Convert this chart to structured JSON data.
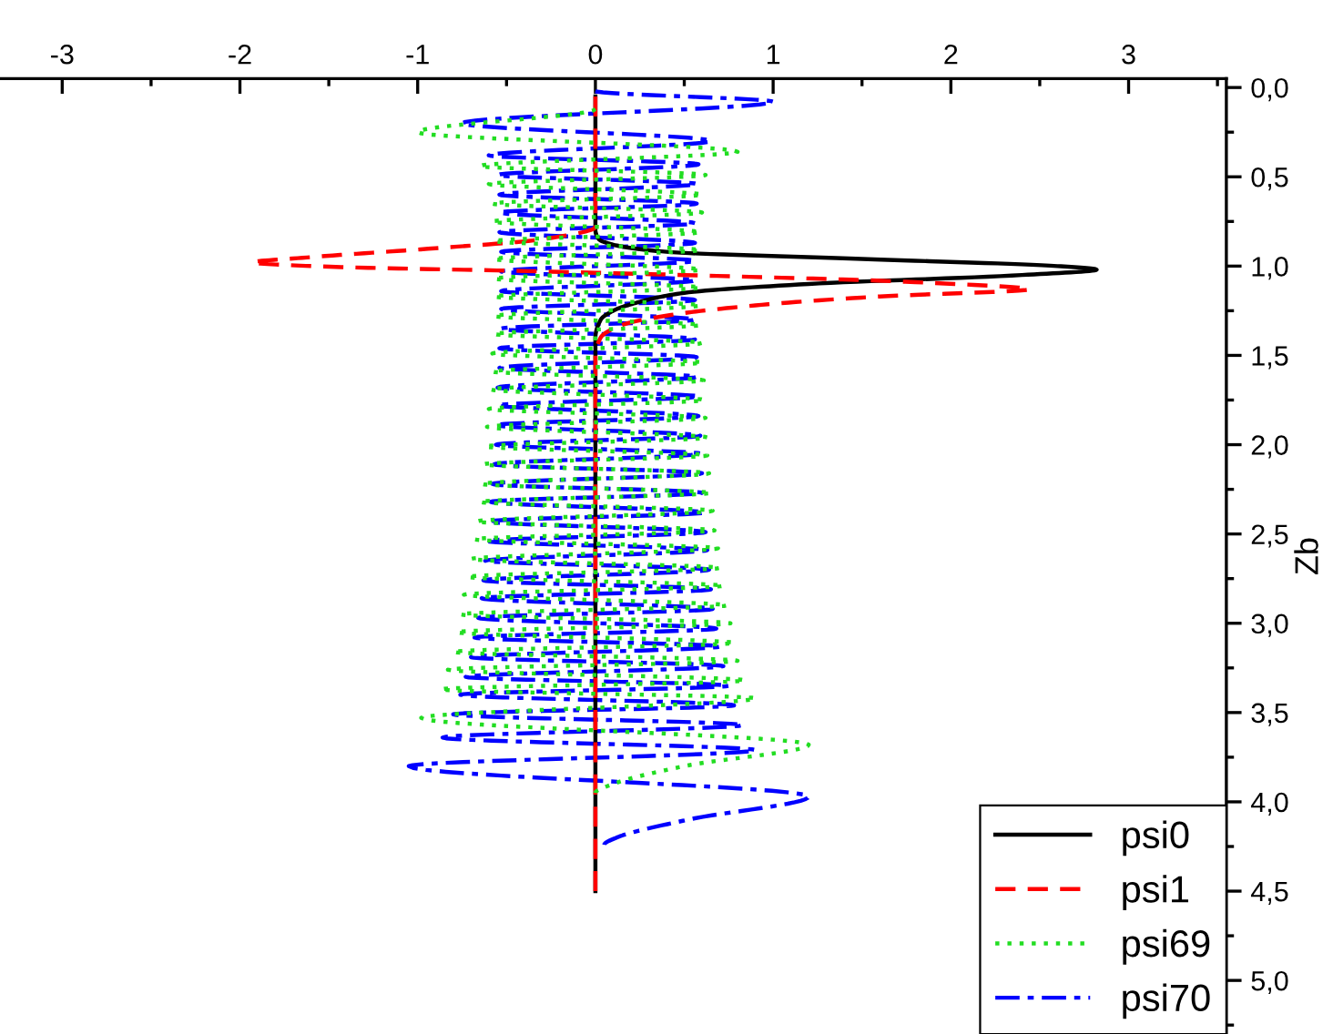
{
  "chart_data": {
    "type": "line",
    "ylabel": "Zb",
    "xlim": [
      -3.35,
      3.55
    ],
    "xticks": [
      -3,
      -2,
      -1,
      0,
      1,
      2,
      3
    ],
    "ylim": [
      5.3,
      -0.05
    ],
    "yticks": [
      {
        "value": 0,
        "label": "0,0"
      },
      {
        "value": 0.5,
        "label": "0,5"
      },
      {
        "value": 1,
        "label": "1,0"
      },
      {
        "value": 1.5,
        "label": "1,5"
      },
      {
        "value": 2,
        "label": "2,0"
      },
      {
        "value": 2.5,
        "label": "2,5"
      },
      {
        "value": 3,
        "label": "3,0"
      },
      {
        "value": 3.5,
        "label": "3,5"
      },
      {
        "value": 4,
        "label": "4,0"
      },
      {
        "value": 4.5,
        "label": "4,5"
      },
      {
        "value": 5,
        "label": "5,0"
      }
    ],
    "grid": false,
    "legend": "bottom right",
    "marker": "none",
    "series": [
      {
        "name": "psi0",
        "color": "#000000",
        "line_style": "solid",
        "x": [
          0,
          0,
          0.02,
          0.1,
          0.4,
          1.5,
          2.6,
          2.82,
          2.4,
          1.2,
          0.5,
          0.25,
          0.1,
          0.03,
          0,
          0
        ],
        "values": [
          0.05,
          0.8,
          0.85,
          0.88,
          0.92,
          0.96,
          1.0,
          1.02,
          1.05,
          1.1,
          1.15,
          1.2,
          1.25,
          1.3,
          1.4,
          4.5
        ]
      },
      {
        "name": "psi1",
        "color": "#ff0000",
        "line_style": "dashed",
        "x": [
          0,
          0,
          -0.3,
          -0.9,
          -1.6,
          -1.93,
          -1.6,
          -0.3,
          0.5,
          1.8,
          2.44,
          1.6,
          0.9,
          0.45,
          0.15,
          0.03,
          0,
          0
        ],
        "values": [
          0.05,
          0.78,
          0.85,
          0.9,
          0.95,
          0.98,
          1.0,
          1.03,
          1.05,
          1.09,
          1.13,
          1.17,
          1.22,
          1.27,
          1.33,
          1.4,
          1.5,
          4.5
        ]
      },
      {
        "name": "psi69",
        "color": "#22dd22",
        "line_style": "dotted",
        "x": [
          0,
          -1.0,
          0.8,
          -0.65,
          0.62,
          -0.6,
          0.6,
          -0.58,
          0.6,
          -0.58,
          0.59,
          -0.57,
          0.59,
          -0.57,
          0.59,
          -0.57,
          0.59,
          -0.57,
          0.59,
          -0.57,
          0.59,
          -0.57,
          0.6,
          -0.58,
          0.6,
          -0.58,
          0.61,
          -0.59,
          0.61,
          -0.6,
          0.62,
          -0.61,
          0.63,
          -0.62,
          0.63,
          -0.63,
          0.64,
          -0.64,
          0.65,
          -0.65,
          0.66,
          -0.67,
          0.67,
          -0.68,
          0.69,
          -0.7,
          0.7,
          -0.72,
          0.72,
          -0.74,
          0.74,
          -0.76,
          0.76,
          -0.78,
          0.78,
          -0.8,
          0.8,
          -0.83,
          0.84,
          -0.87,
          0.9,
          -0.98,
          1.2,
          0.5,
          0.1,
          0
        ],
        "values": [
          0.12,
          0.25,
          0.36,
          0.44,
          0.49,
          0.54,
          0.6,
          0.65,
          0.7,
          0.75,
          0.81,
          0.86,
          0.91,
          0.96,
          1.02,
          1.07,
          1.12,
          1.17,
          1.22,
          1.28,
          1.33,
          1.38,
          1.43,
          1.49,
          1.54,
          1.59,
          1.64,
          1.69,
          1.75,
          1.8,
          1.85,
          1.9,
          1.96,
          2.01,
          2.06,
          2.11,
          2.16,
          2.22,
          2.27,
          2.32,
          2.37,
          2.43,
          2.48,
          2.53,
          2.58,
          2.64,
          2.69,
          2.74,
          2.79,
          2.84,
          2.9,
          2.95,
          3.0,
          3.05,
          3.11,
          3.16,
          3.21,
          3.26,
          3.32,
          3.37,
          3.42,
          3.53,
          3.68,
          3.8,
          3.9,
          3.95
        ]
      },
      {
        "name": "psi70",
        "color": "#0000ff",
        "line_style": "dashdot",
        "x": [
          0,
          1.0,
          -0.75,
          0.65,
          -0.6,
          0.58,
          -0.55,
          0.57,
          -0.54,
          0.57,
          -0.54,
          0.56,
          -0.54,
          0.56,
          -0.53,
          0.56,
          -0.53,
          0.56,
          -0.53,
          0.56,
          -0.53,
          0.56,
          -0.53,
          0.56,
          -0.54,
          0.57,
          -0.54,
          0.57,
          -0.55,
          0.58,
          -0.55,
          0.58,
          -0.56,
          0.59,
          -0.56,
          0.59,
          -0.57,
          0.6,
          -0.58,
          0.6,
          -0.59,
          0.61,
          -0.6,
          0.62,
          -0.61,
          0.63,
          -0.62,
          0.64,
          -0.63,
          0.65,
          -0.64,
          0.66,
          -0.66,
          0.68,
          -0.68,
          0.7,
          -0.7,
          0.72,
          -0.73,
          0.75,
          -0.76,
          0.78,
          -0.8,
          0.83,
          -0.86,
          0.9,
          -1.05,
          1.2,
          0.52,
          0.12,
          0.05
        ],
        "values": [
          0.02,
          0.08,
          0.2,
          0.3,
          0.38,
          0.43,
          0.49,
          0.54,
          0.6,
          0.65,
          0.7,
          0.76,
          0.81,
          0.87,
          0.92,
          0.97,
          1.03,
          1.08,
          1.14,
          1.19,
          1.24,
          1.3,
          1.35,
          1.41,
          1.46,
          1.51,
          1.57,
          1.62,
          1.68,
          1.73,
          1.78,
          1.84,
          1.89,
          1.95,
          2.0,
          2.05,
          2.11,
          2.16,
          2.22,
          2.27,
          2.32,
          2.38,
          2.43,
          2.49,
          2.54,
          2.59,
          2.65,
          2.7,
          2.76,
          2.81,
          2.86,
          2.92,
          2.97,
          3.03,
          3.08,
          3.13,
          3.19,
          3.24,
          3.3,
          3.35,
          3.4,
          3.46,
          3.51,
          3.57,
          3.64,
          3.71,
          3.8,
          3.97,
          4.1,
          4.2,
          4.24
        ]
      }
    ]
  }
}
